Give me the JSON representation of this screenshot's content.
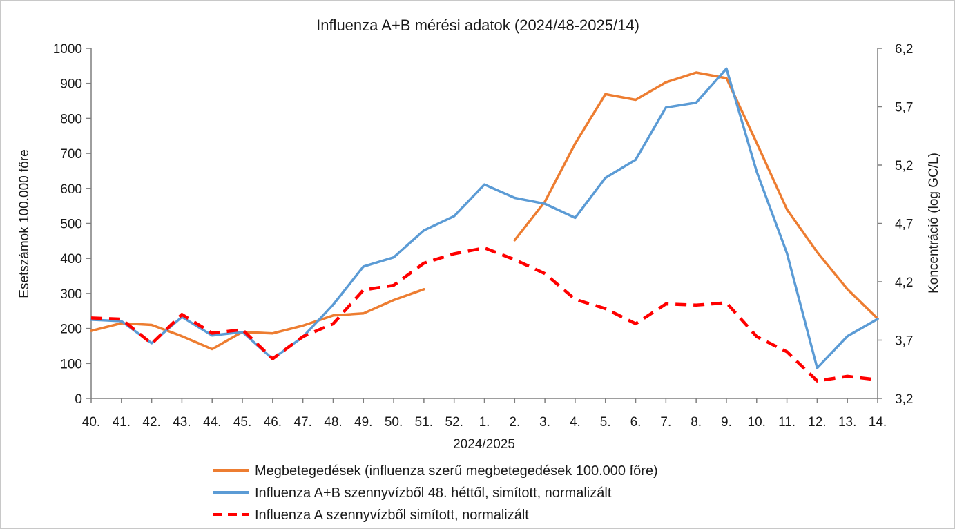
{
  "chart_data": {
    "type": "line",
    "title": "Influenza A+B mérési adatok (2024/48-2025/14)",
    "xlabel": "2024/2025",
    "ylabel": "Esetszámok 100.000 főre",
    "y2label": "Koncentráció (log GC/L)",
    "categories": [
      "40.",
      "41.",
      "42.",
      "43.",
      "44.",
      "45.",
      "46.",
      "47.",
      "48.",
      "49.",
      "50.",
      "51.",
      "52.",
      "1.",
      "2.",
      "3.",
      "4.",
      "5.",
      "6.",
      "7.",
      "8.",
      "9.",
      "10.",
      "11.",
      "12.",
      "13.",
      "14."
    ],
    "ylim": [
      0,
      1000
    ],
    "y_ticks": [
      "0",
      "100",
      "200",
      "300",
      "400",
      "500",
      "600",
      "700",
      "800",
      "900",
      "1000"
    ],
    "y2lim": [
      3.2,
      6.2
    ],
    "y2_ticks": [
      "3,2",
      "3,7",
      "4,2",
      "4,7",
      "5,2",
      "5,7",
      "6,2"
    ],
    "grid": false,
    "legend_position": "bottom",
    "series": [
      {
        "name": "Megbetegedések (influenza szerű megbetegedések 100.000 főre)",
        "axis": "left",
        "color": "#ED7D31",
        "dash": "solid",
        "values": [
          193,
          215,
          210,
          178,
          141,
          190,
          186,
          208,
          237,
          243,
          281,
          312,
          null,
          null,
          452,
          562,
          728,
          869,
          853,
          903,
          931,
          915,
          730,
          540,
          418,
          312,
          228
        ]
      },
      {
        "name": "Influenza A+B szennyvízből 48. héttől, simított, normalizált",
        "axis": "left",
        "color": "#5B9BD5",
        "dash": "solid",
        "values": [
          225,
          221,
          158,
          233,
          180,
          190,
          113,
          176,
          268,
          377,
          403,
          480,
          521,
          611,
          573,
          556,
          516,
          630,
          682,
          831,
          845,
          942,
          648,
          415,
          87,
          178,
          227
        ]
      },
      {
        "name": "Influenza A szennyvízből simított, normalizált",
        "axis": "right",
        "color": "#FF0000",
        "dash": "dashed",
        "values": [
          3.89,
          3.88,
          3.67,
          3.92,
          3.76,
          3.79,
          3.54,
          3.73,
          3.84,
          4.13,
          4.17,
          4.36,
          4.44,
          4.49,
          4.39,
          4.27,
          4.05,
          3.97,
          3.84,
          4.01,
          4.0,
          4.02,
          3.73,
          3.6,
          3.35,
          3.39,
          3.36
        ]
      }
    ]
  }
}
